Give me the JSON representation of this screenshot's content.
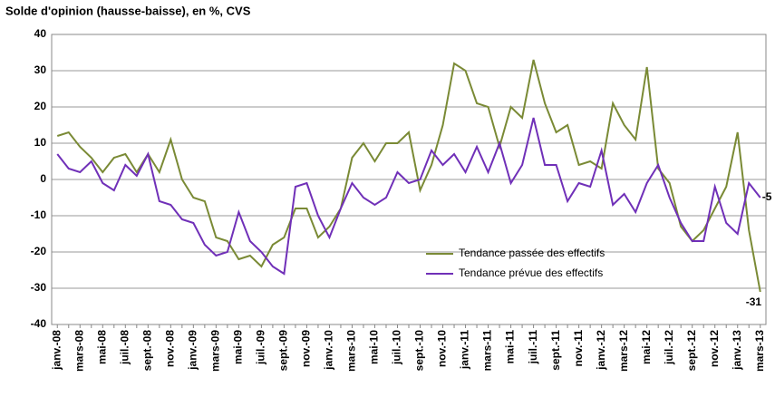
{
  "chart_data": {
    "type": "line",
    "title": "Solde d'opinion (hausse-baisse), en %, CVS",
    "categories": [
      "janv.-08",
      null,
      "mars-08",
      null,
      "mai-08",
      null,
      "juil.-08",
      null,
      "sept.-08",
      null,
      "nov.-08",
      null,
      "janv.-09",
      null,
      "mars-09",
      null,
      "mai-09",
      null,
      "juil.-09",
      null,
      "sept.-09",
      null,
      "nov.-09",
      null,
      "janv.-10",
      null,
      "mars-10",
      null,
      "mai-10",
      null,
      "juil.-10",
      null,
      "sept.-10",
      null,
      "nov.-10",
      null,
      "janv.-11",
      null,
      "mars-11",
      null,
      "mai-11",
      null,
      "juil.-11",
      null,
      "sept.-11",
      null,
      "nov.-11",
      null,
      "janv.-12",
      null,
      "mars-12",
      null,
      "mai-12",
      null,
      "juil.-12",
      null,
      "sept.-12",
      null,
      "nov.-12",
      null,
      "janv.-13",
      null,
      "mars-13"
    ],
    "series": [
      {
        "name": "Tendance passée des effectifs",
        "color": "#7a8a35",
        "values": [
          12,
          13,
          9,
          6,
          2,
          6,
          7,
          2,
          7,
          2,
          11,
          0,
          -5,
          -6,
          -16,
          -17,
          -22,
          -21,
          -24,
          -18,
          -16,
          -8,
          -8,
          -16,
          -13,
          -8,
          6,
          10,
          5,
          10,
          10,
          13,
          -3,
          4,
          15,
          32,
          30,
          21,
          20,
          9,
          20,
          17,
          33,
          21,
          13,
          15,
          4,
          5,
          3,
          21,
          15,
          11,
          31,
          3,
          -1,
          -13,
          -17,
          -14,
          -8,
          -2,
          13,
          -14,
          -31
        ]
      },
      {
        "name": "Tendance prévue des effectifs",
        "color": "#7030b8",
        "values": [
          7,
          3,
          2,
          5,
          -1,
          -3,
          4,
          1,
          7,
          -6,
          -7,
          -11,
          -12,
          -18,
          -21,
          -20,
          -9,
          -17,
          -20,
          -24,
          -26,
          -2,
          -1,
          -10,
          -16,
          -8,
          -1,
          -5,
          -7,
          -5,
          2,
          -1,
          0,
          8,
          4,
          7,
          2,
          9,
          2,
          10,
          -1,
          4,
          17,
          4,
          4,
          -6,
          -1,
          -2,
          8,
          -7,
          -4,
          -9,
          -1,
          4,
          -5,
          -12,
          -17,
          -17,
          -2,
          -12,
          -15,
          -1,
          -5
        ]
      }
    ],
    "ylim": [
      -40,
      40
    ],
    "yticks": [
      -40,
      -30,
      -20,
      -10,
      0,
      10,
      20,
      30,
      40
    ],
    "grid": true
  }
}
